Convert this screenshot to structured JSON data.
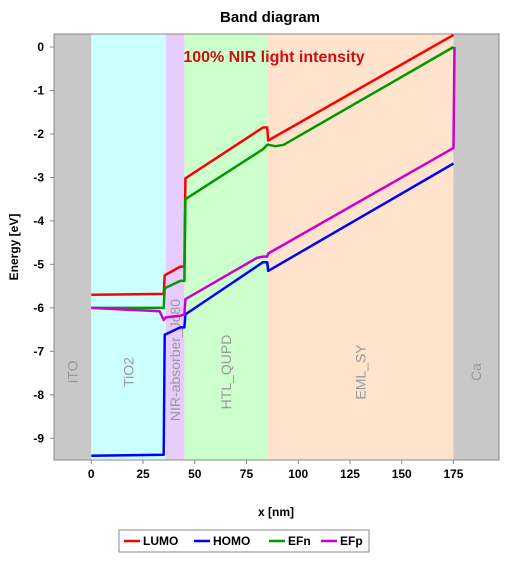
{
  "chart_data": {
    "type": "line",
    "title": "Band diagram",
    "xlabel": "x [nm]",
    "ylabel": "Energy [eV]",
    "xlim": [
      -18,
      197
    ],
    "ylim": [
      -9.5,
      0.3
    ],
    "x_ticks": [
      0,
      25,
      50,
      75,
      100,
      125,
      150,
      175
    ],
    "y_ticks": [
      0,
      -1,
      -2,
      -3,
      -4,
      -5,
      -6,
      -7,
      -8,
      -9
    ],
    "annotation": "100% NIR light intensity",
    "grid": false,
    "legend_position": "bottom-center",
    "regions": [
      {
        "name": "ITO",
        "x0": -18,
        "x1": 0,
        "color": "#c8c8c8"
      },
      {
        "name": "TiO2",
        "x0": 0,
        "x1": 36,
        "color": "#ccffff"
      },
      {
        "name": "NIR-absorber_Jo80",
        "x0": 36,
        "x1": 45,
        "color": "#e6ccff"
      },
      {
        "name": "HTL_QUPD",
        "x0": 45,
        "x1": 85,
        "color": "#ccffcc"
      },
      {
        "name": "EML_SY",
        "x0": 85,
        "x1": 175,
        "color": "#ffe3cc"
      },
      {
        "name": "Ca",
        "x0": 175,
        "x1": 197,
        "color": "#c8c8c8"
      }
    ],
    "series": [
      {
        "name": "LUMO",
        "color": "#ff0000",
        "x": [
          0,
          35,
          35.5,
          43,
          43.5,
          45,
          45.5,
          83,
          85,
          85.5,
          175
        ],
        "y": [
          -5.7,
          -5.68,
          -5.25,
          -5.05,
          -5.05,
          -5.05,
          -3.02,
          -1.85,
          -1.85,
          -2.15,
          0.28
        ]
      },
      {
        "name": "HOMO",
        "color": "#0000ff",
        "x": [
          0,
          35,
          35.5,
          43,
          43.5,
          45,
          45.5,
          83,
          85,
          85.5,
          175
        ],
        "y": [
          -9.4,
          -9.38,
          -6.62,
          -6.45,
          -6.45,
          -6.45,
          -6.15,
          -4.95,
          -4.95,
          -5.15,
          -2.68
        ]
      },
      {
        "name": "EFn",
        "color": "#009900",
        "x": [
          0,
          35,
          35.5,
          43,
          43.5,
          45,
          45.5,
          83,
          85,
          85.5,
          89,
          93,
          175
        ],
        "y": [
          -6.0,
          -6.0,
          -5.55,
          -5.38,
          -5.38,
          -5.38,
          -3.5,
          -2.35,
          -2.25,
          -2.25,
          -2.28,
          -2.25,
          0.0
        ]
      },
      {
        "name": "EFp",
        "color": "#cc00cc",
        "x": [
          0,
          33,
          35,
          36,
          43,
          45,
          45.5,
          80,
          83,
          85,
          85.5,
          174,
          175,
          175.5
        ],
        "y": [
          -6.0,
          -6.08,
          -6.28,
          -6.22,
          -6.18,
          -6.15,
          -5.8,
          -4.85,
          -4.82,
          -4.82,
          -4.75,
          -2.35,
          -2.32,
          0.0
        ]
      }
    ]
  }
}
